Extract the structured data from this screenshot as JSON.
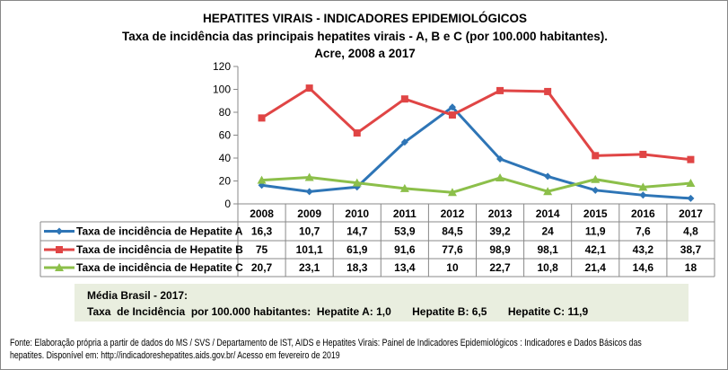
{
  "title": "HEPATITES VIRAIS - INDICADORES EPIDEMIOLÓGICOS",
  "subtitle": "Taxa de incidência das principais hepatites virais - A, B e C (por 100.000 habitantes).",
  "subtitle2": "Acre, 2008 a 2017",
  "chart_data": {
    "type": "line",
    "categories": [
      "2008",
      "2009",
      "2010",
      "2011",
      "2012",
      "2013",
      "2014",
      "2015",
      "2016",
      "2017"
    ],
    "ylim": [
      0,
      120
    ],
    "yticks": [
      "0",
      "20",
      "40",
      "60",
      "80",
      "100",
      "120"
    ],
    "grid": false,
    "legend": "data-table-below",
    "series": [
      {
        "name": "Taxa de incidência de Hepatite A",
        "color": "#2e75b6",
        "marker": "diamond",
        "values": [
          16.3,
          10.7,
          14.7,
          53.9,
          84.5,
          39.2,
          24,
          11.9,
          7.6,
          4.8
        ],
        "labels": [
          "16,3",
          "10,7",
          "14,7",
          "53,9",
          "84,5",
          "39,2",
          "24",
          "11,9",
          "7,6",
          "4,8"
        ]
      },
      {
        "name": "Taxa de incidência de Hepatite B",
        "color": "#e04545",
        "marker": "square",
        "values": [
          75,
          101.1,
          61.9,
          91.6,
          77.6,
          98.9,
          98.1,
          42.1,
          43.2,
          38.7
        ],
        "labels": [
          "75",
          "101,1",
          "61,9",
          "91,6",
          "77,6",
          "98,9",
          "98,1",
          "42,1",
          "43,2",
          "38,7"
        ]
      },
      {
        "name": "Taxa de incidência de Hepatite C",
        "color": "#8cbf4a",
        "marker": "triangle",
        "values": [
          20.7,
          23.1,
          18.3,
          13.4,
          10,
          22.7,
          10.8,
          21.4,
          14.6,
          18
        ],
        "labels": [
          "20,7",
          "23,1",
          "18,3",
          "13,4",
          "10",
          "22,7",
          "10,8",
          "21,4",
          "14,6",
          "18"
        ]
      }
    ]
  },
  "media": {
    "line1": "Média Brasil  - 2017:",
    "line2": "Taxa  de Incidência  por 100.000 habitantes:  Hepatite A: 1,0       Hepatite B: 6,5       Hepatite C: 11,9"
  },
  "fonte": {
    "line1": "Fonte: Elaboração própria a partir de dados do MS / SVS / Departamento de IST, AIDS e Hepatites Virais:  Painel de Indicadores Epidemiológicos : Indicadores e Dados Básicos das",
    "line2": "hepatites.  Disponível em: http://indicadoreshepatites.aids.gov.br/      Acesso em fevereiro de 2019"
  }
}
